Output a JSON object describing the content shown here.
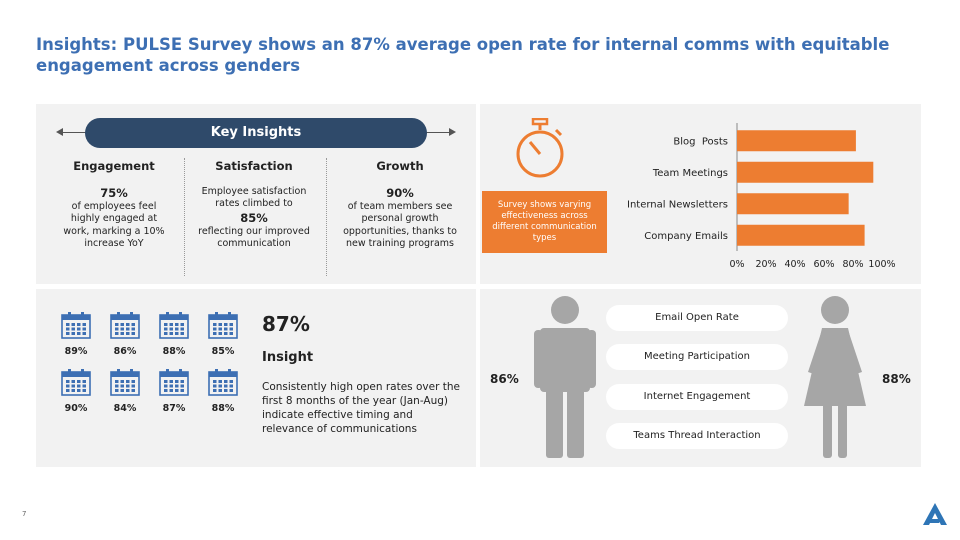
{
  "title": "Insights: PULSE Survey shows an 87% average open rate for internal comms with equitable engagement across genders",
  "key_insights": {
    "label": "Key Insights",
    "engagement": {
      "heading": "Engagement",
      "value": "75%",
      "text": "of employees feel highly engaged at work, marking a 10% increase YoY"
    },
    "satisfaction": {
      "heading": "Satisfaction",
      "text_before": "Employee satisfaction rates climbed to",
      "value": "85%",
      "text_after": "reflecting our improved communication"
    },
    "growth": {
      "heading": "Growth",
      "value": "90%",
      "text": "of team members see personal growth opportunities, thanks to new training programs"
    }
  },
  "survey_box": "Survey shows varying effectiveness across different communication types",
  "chart_data": {
    "type": "bar",
    "orientation": "horizontal",
    "categories": [
      "Blog  Posts",
      "Team Meetings",
      "Internal Newsletters",
      "Company Emails"
    ],
    "values": [
      82,
      94,
      77,
      88
    ],
    "x_ticks": [
      "0%",
      "20%",
      "40%",
      "60%",
      "80%",
      "100%"
    ],
    "xlim": [
      0,
      100
    ],
    "color": "#ed7d31",
    "grid": false
  },
  "monthly_open_rates": [
    "89%",
    "86%",
    "88%",
    "85%",
    "90%",
    "84%",
    "87%",
    "88%"
  ],
  "insight": {
    "value": "87%",
    "heading": "Insight",
    "text": "Consistently high open rates over the first 8 months of the year (Jan-Aug) indicate effective timing and relevance of communications"
  },
  "gender": {
    "male_pct": "86%",
    "female_pct": "88%",
    "metrics": [
      "Email Open Rate",
      "Meeting Participation",
      "Internet Engagement",
      "Teams Thread Interaction"
    ],
    "figure_color": "#a6a6a6"
  },
  "page_number": "7",
  "colors": {
    "title": "#3d6fb3",
    "pill_dark": "#2f4a6a",
    "orange": "#ed7d31",
    "calendar": "#3d6fb3",
    "logo": "#2e75b6"
  }
}
